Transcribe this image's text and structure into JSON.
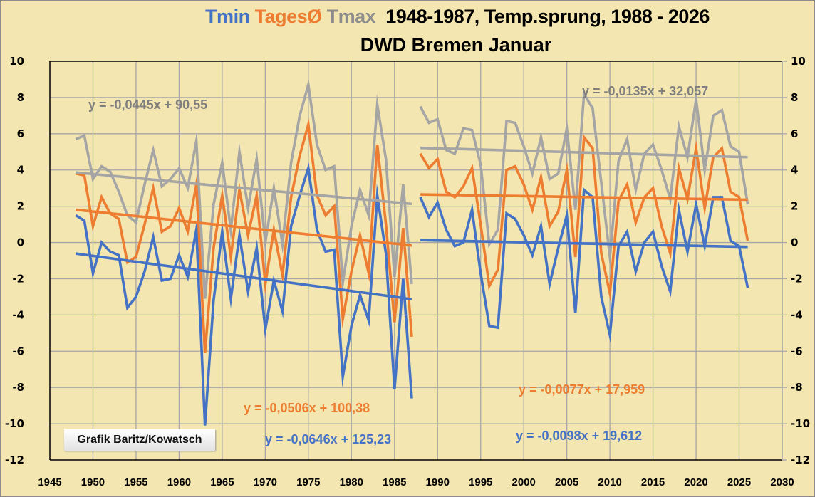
{
  "title": {
    "tmin": "Tmin",
    "tages": "TagesØ",
    "tmax": "Tmax",
    "rest": "1948-1987, Temp.sprung,  1988 - 2026",
    "subtitle": "DWD Bremen Januar"
  },
  "credit": "Grafik Baritz/Kowatsch",
  "chart_data": {
    "type": "line",
    "title": "Tmin TagesØ Tmax  1948-1987, Temp.sprung,  1988 - 2026 — DWD Bremen Januar",
    "xlabel": "",
    "ylabel": "",
    "xlim": [
      1945,
      2030
    ],
    "ylim": [
      -12,
      10
    ],
    "xticks": [
      1945,
      1950,
      1955,
      1960,
      1965,
      1970,
      1975,
      1980,
      1985,
      1990,
      1995,
      2000,
      2005,
      2010,
      2015,
      2020,
      2025,
      2030
    ],
    "yticks": [
      10,
      8,
      6,
      4,
      2,
      0,
      -2,
      -4,
      -6,
      -8,
      -10,
      -12
    ],
    "grid": true,
    "legend": "none (series names colored in title)",
    "colors": {
      "tmin": "#4472c4",
      "tages": "#ed7d31",
      "tmax": "#a5a5a5",
      "eq_tmax": "#7f7f7f"
    },
    "segments": [
      {
        "x_start": 1948,
        "x_end": 1987,
        "series": [
          {
            "name": "Tmax",
            "key": "tmax",
            "values": [
              5.7,
              5.9,
              3.5,
              4.2,
              3.9,
              2.8,
              1.5,
              1.1,
              3.2,
              5.1,
              3.1,
              3.5,
              4.1,
              3.0,
              5.6,
              -3.1,
              2.1,
              4.4,
              0.7,
              5.0,
              1.9,
              4.6,
              0.0,
              3.0,
              -0.1,
              4.4,
              7.0,
              8.7,
              5.4,
              4.0,
              4.2,
              -2.2,
              0.9,
              2.9,
              1.5,
              7.6,
              4.6,
              -1.9,
              3.2,
              -2.3
            ]
          },
          {
            "name": "TagesØ",
            "key": "tages",
            "values": [
              3.8,
              3.7,
              0.9,
              2.5,
              1.6,
              1.3,
              -1.1,
              -0.8,
              1.0,
              3.0,
              0.6,
              0.9,
              1.9,
              0.6,
              3.2,
              -6.1,
              -0.3,
              2.6,
              -0.8,
              2.9,
              0.4,
              2.6,
              -2.3,
              0.7,
              -1.8,
              2.5,
              4.8,
              6.5,
              2.6,
              1.5,
              2.0,
              -4.2,
              -1.6,
              0.4,
              -1.7,
              5.4,
              1.0,
              -4.4,
              0.8,
              -5.2
            ]
          },
          {
            "name": "Tmin",
            "key": "tmin",
            "values": [
              1.5,
              1.2,
              -1.7,
              0.0,
              -0.5,
              -0.7,
              -3.6,
              -3.0,
              -1.6,
              0.3,
              -2.1,
              -2.0,
              -0.7,
              -1.9,
              0.7,
              -10.1,
              -3.2,
              0.6,
              -3.1,
              0.4,
              -2.7,
              -0.3,
              -4.8,
              -2.1,
              -3.8,
              0.9,
              2.6,
              4.1,
              0.7,
              -0.5,
              -0.4,
              -7.4,
              -4.6,
              -2.9,
              -4.3,
              2.6,
              -0.6,
              -8.1,
              -2.0,
              -8.6
            ]
          }
        ],
        "trendlines": [
          {
            "key": "tmax",
            "label": "y = -0,0445x + 90,55",
            "slope": -0.0445,
            "intercept": 90.55
          },
          {
            "key": "tages",
            "label": "y = -0,0506x + 100,38",
            "slope": -0.0506,
            "intercept": 100.38
          },
          {
            "key": "tmin",
            "label": "y = -0,0646x + 125,23",
            "slope": -0.0646,
            "intercept": 125.23
          }
        ]
      },
      {
        "x_start": 1988,
        "x_end": 2026,
        "series": [
          {
            "name": "Tmax",
            "key": "tmax",
            "values": [
              7.5,
              6.6,
              6.8,
              5.1,
              4.9,
              6.3,
              6.2,
              4.3,
              -0.1,
              0.7,
              6.7,
              6.6,
              5.3,
              3.8,
              5.8,
              3.5,
              3.8,
              6.3,
              1.8,
              8.2,
              7.4,
              3.3,
              -0.8,
              4.5,
              5.7,
              2.9,
              4.9,
              5.4,
              4.0,
              2.4,
              6.4,
              4.7,
              7.9,
              4.0,
              7.0,
              7.3,
              5.3,
              5.0,
              2.1
            ]
          },
          {
            "name": "TagesØ",
            "key": "tages",
            "values": [
              4.9,
              4.1,
              4.6,
              2.8,
              2.5,
              3.1,
              4.1,
              1.0,
              -2.4,
              -1.5,
              4.0,
              4.2,
              3.2,
              1.8,
              3.6,
              0.9,
              1.7,
              4.0,
              -0.8,
              5.8,
              5.2,
              -0.6,
              -2.8,
              2.3,
              3.2,
              1.1,
              2.5,
              3.0,
              0.9,
              -0.6,
              4.1,
              2.4,
              5.2,
              1.9,
              4.7,
              5.2,
              2.8,
              2.5,
              0.1
            ]
          },
          {
            "name": "Tmin",
            "key": "tmin",
            "values": [
              2.5,
              1.4,
              2.2,
              0.7,
              -0.2,
              0.0,
              1.8,
              -1.7,
              -4.6,
              -4.7,
              1.6,
              1.3,
              0.4,
              -0.7,
              0.9,
              -2.3,
              -0.3,
              1.5,
              -3.9,
              2.9,
              2.5,
              -3.0,
              -5.1,
              -0.2,
              0.6,
              -1.6,
              0.0,
              0.6,
              -1.3,
              -2.7,
              1.8,
              -0.5,
              2.1,
              -0.2,
              2.5,
              2.5,
              0.1,
              -0.2,
              -2.5
            ]
          }
        ],
        "trendlines": [
          {
            "key": "tmax",
            "label": "y = -0,0135x + 32,057",
            "slope": -0.0135,
            "intercept": 32.057
          },
          {
            "key": "tages",
            "label": "y = -0,0077x + 17,959",
            "slope": -0.0077,
            "intercept": 17.959
          },
          {
            "key": "tmin",
            "label": "y = -0,0098x + 19,612",
            "slope": -0.0098,
            "intercept": 19.612
          }
        ]
      }
    ]
  }
}
